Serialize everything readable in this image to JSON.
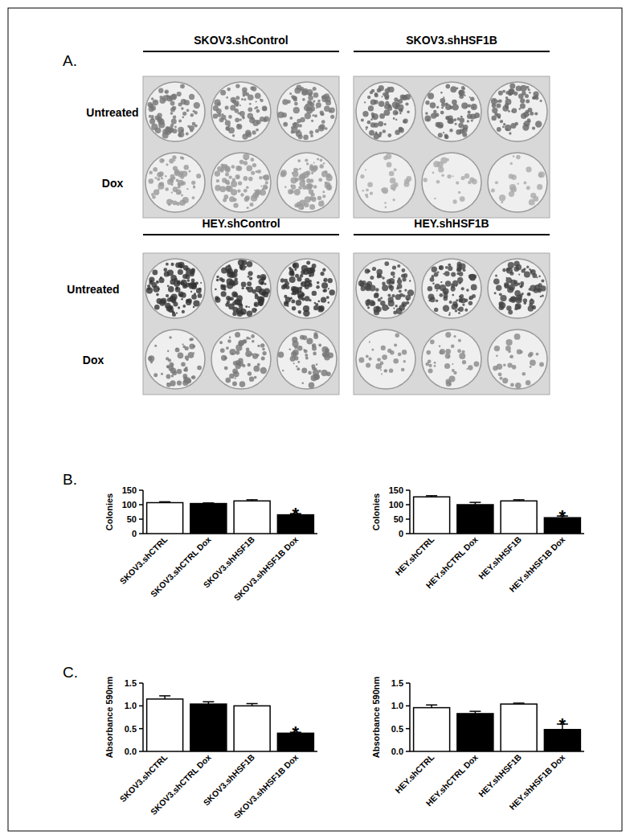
{
  "figure": {
    "panel_labels": [
      "A.",
      "B.",
      "C."
    ],
    "plate_groups": [
      {
        "row_labels": [
          "Untreated",
          "Dox"
        ],
        "plates": [
          "SKOV3.shControl",
          "SKOV3.shHSF1B"
        ]
      },
      {
        "row_labels": [
          "Untreated",
          "Dox"
        ],
        "plates": [
          "HEY.shControl",
          "HEY.shHSF1B"
        ]
      }
    ]
  },
  "chart_data": [
    {
      "type": "bar",
      "y_label": "Colonies",
      "categories": [
        "SKOV3.shCTRL",
        "SKOV3.shCTRL Dox",
        "SKOV3.shHSF1B",
        "SKOV3.shHSF1B Dox"
      ],
      "values": [
        107,
        104,
        113,
        65
      ],
      "errors": [
        3,
        2,
        4,
        4
      ],
      "colors": [
        "#ffffff",
        "#000000",
        "#ffffff",
        "#000000"
      ],
      "ylim": [
        0,
        150
      ],
      "yticks": [
        0,
        50,
        100,
        150
      ],
      "annotations": [
        {
          "category": "SKOV3.shHSF1B Dox",
          "text": "*"
        }
      ]
    },
    {
      "type": "bar",
      "y_label": "Colonies",
      "categories": [
        "HEY.shCTRL",
        "HEY.shCTRL Dox",
        "HEY.shHSF1B",
        "HEY.shHSF1B Dox"
      ],
      "values": [
        127,
        100,
        113,
        55
      ],
      "errors": [
        4,
        8,
        4,
        6
      ],
      "colors": [
        "#ffffff",
        "#000000",
        "#ffffff",
        "#000000"
      ],
      "ylim": [
        0,
        150
      ],
      "yticks": [
        0,
        50,
        100,
        150
      ],
      "annotations": [
        {
          "category": "HEY.shHSF1B Dox",
          "text": "*"
        }
      ]
    },
    {
      "type": "bar",
      "y_label": "Absorbance 590nm",
      "categories": [
        "SKOV3.shCTRL",
        "SKOV3.shCTRL Dox",
        "SKOV3.shHSF1B",
        "SKOV3.shHSF1B Dox"
      ],
      "values": [
        1.15,
        1.04,
        1.0,
        0.4
      ],
      "errors": [
        0.07,
        0.05,
        0.05,
        0.02
      ],
      "colors": [
        "#ffffff",
        "#000000",
        "#ffffff",
        "#000000"
      ],
      "ylim": [
        0,
        1.5
      ],
      "yticks": [
        {
          "value": 0,
          "label": "0.0"
        },
        0.5,
        {
          "value": 1,
          "label": "1.0"
        },
        1.5
      ],
      "annotations": [
        {
          "category": "SKOV3.shHSF1B Dox",
          "text": "*"
        }
      ]
    },
    {
      "type": "bar",
      "y_label": "Absorbance 590nm",
      "categories": [
        "HEY.shCTRL",
        "HEY.shCTRL Dox",
        "HEY.shHSF1B",
        "HEY.shHSF1B Dox"
      ],
      "values": [
        0.96,
        0.83,
        1.04,
        0.48
      ],
      "errors": [
        0.06,
        0.05,
        0.02,
        0.12
      ],
      "colors": [
        "#ffffff",
        "#000000",
        "#ffffff",
        "#000000"
      ],
      "ylim": [
        0,
        1.5
      ],
      "yticks": [
        {
          "value": 0,
          "label": "0.0"
        },
        0.5,
        {
          "value": 1,
          "label": "1.0"
        },
        1.5
      ],
      "annotations": [
        {
          "category": "HEY.shHSF1B Dox",
          "text": "*"
        }
      ]
    }
  ]
}
